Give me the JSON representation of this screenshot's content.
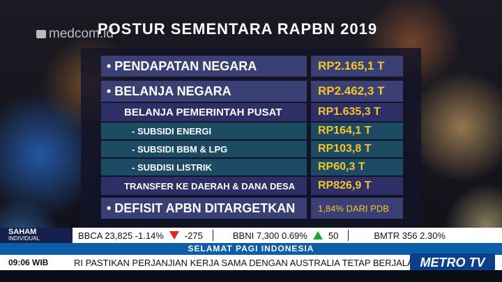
{
  "logo": "medcom.id",
  "title": "POSTUR SEMENTARA RAPBN 2019",
  "rows": [
    {
      "label": "• PENDAPATAN NEGARA",
      "value": "RP2.165,1 T"
    },
    {
      "label": "• BELANJA NEGARA",
      "value": "RP2.462,3 T"
    },
    {
      "label": "BELANJA PEMERINTAH PUSAT",
      "value": "RP1.635,3 T"
    },
    {
      "label": "- SUBSIDI ENERGI",
      "value": "RP164,1 T"
    },
    {
      "label": "- SUBSIDI BBM & LPG",
      "value": "RP103,8 T"
    },
    {
      "label": "- SUBDISI LISTRIK",
      "value": "RP60,3 T"
    },
    {
      "label": "TRANSFER KE DAERAH & DANA DESA",
      "value": "RP826,9 T"
    },
    {
      "label": "• DEFISIT APBN  DITARGETKAN",
      "value": "1,84% DARI PDB"
    }
  ],
  "ticker": {
    "label_top": "SAHAM",
    "label_bottom": "INDIVIDUAL",
    "s1": "BBCA  23,825   -1.14%",
    "s1b": "-275",
    "s2": "BBNI  7,300  0.69%",
    "s2b": "50",
    "s3": "BMTR  356   2.30%"
  },
  "program": "SELAMAT PAGI INDONESIA",
  "time": "09:06 WIB",
  "headline": "RI PASTIKAN PERJANJIAN KERJA SAMA DENGAN AUSTRALIA TETAP BERJALAN",
  "brand": "METRO TV"
}
